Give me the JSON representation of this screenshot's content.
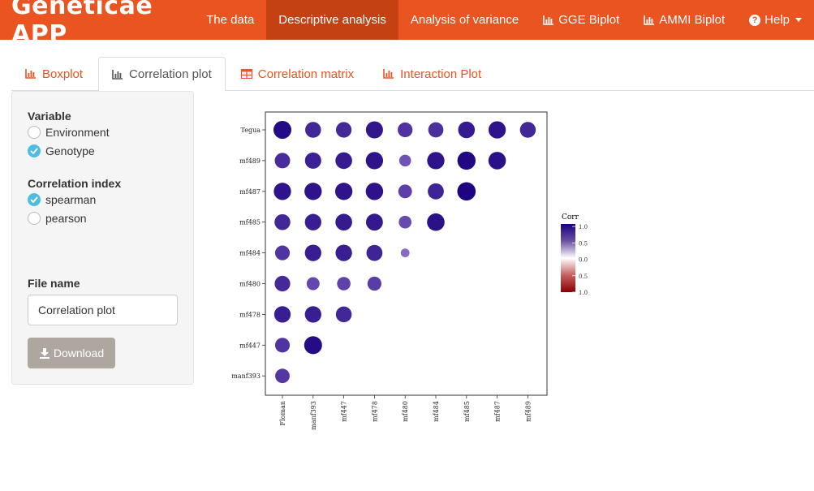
{
  "navbar": {
    "brand": "Geneticae APP",
    "items": [
      {
        "label": "The data",
        "icon": ""
      },
      {
        "label": "Descriptive analysis",
        "icon": "",
        "active": true
      },
      {
        "label": "Analysis of variance",
        "icon": ""
      },
      {
        "label": "GGE Biplot",
        "icon": "bar-chart-icon"
      },
      {
        "label": "AMMI Biplot",
        "icon": "bar-chart-icon"
      },
      {
        "label": "Help",
        "icon": "question-circle-icon",
        "dropdown": true
      }
    ]
  },
  "tabs": [
    {
      "label": "Boxplot",
      "icon": "bar-chart-icon"
    },
    {
      "label": "Correlation plot",
      "icon": "bar-chart-icon",
      "active": true
    },
    {
      "label": "Correlation matrix",
      "icon": "table-icon"
    },
    {
      "label": "Interaction Plot",
      "icon": "bar-chart-icon"
    }
  ],
  "sidebar": {
    "variable_label": "Variable",
    "variable_options": [
      "Environment",
      "Genotype"
    ],
    "variable_selected": "Genotype",
    "index_label": "Correlation index",
    "index_options": [
      "spearman",
      "pearson"
    ],
    "index_selected": "spearman",
    "file_name_label": "File name",
    "file_name_value": "Correlation plot",
    "download_label": "Download"
  },
  "colors": {
    "navbar": "#e95420",
    "navbar_active": "#c34113",
    "tab_link": "#e95420",
    "radio_checked": "#4fbde0",
    "download_button": "#aea79f"
  },
  "chart_data": {
    "type": "heatmap",
    "title": "",
    "row_labels": [
      "Tegua",
      "mf489",
      "mf487",
      "mf485",
      "mf484",
      "mf480",
      "mf478",
      "mf447",
      "manf393"
    ],
    "col_labels": [
      "Floman",
      "manf393",
      "mf447",
      "mf478",
      "mf480",
      "mf484",
      "mf485",
      "mf487",
      "mf489"
    ],
    "values": [
      [
        0.92,
        0.72,
        0.7,
        0.84,
        0.63,
        0.66,
        0.8,
        0.86,
        0.72
      ],
      [
        0.68,
        0.76,
        0.8,
        0.86,
        0.4,
        0.86,
        0.95,
        0.88,
        null
      ],
      [
        0.86,
        0.86,
        0.86,
        0.87,
        0.54,
        0.74,
        0.97,
        null,
        null
      ],
      [
        0.72,
        0.78,
        0.8,
        0.82,
        0.46,
        0.88,
        null,
        null,
        null
      ],
      [
        0.62,
        0.78,
        0.78,
        0.74,
        0.22,
        null,
        null,
        null,
        null
      ],
      [
        0.7,
        0.48,
        0.52,
        0.56,
        null,
        null,
        null,
        null,
        null
      ],
      [
        0.78,
        0.78,
        0.72,
        null,
        null,
        null,
        null,
        null,
        null
      ],
      [
        0.62,
        0.92,
        null,
        null,
        null,
        null,
        null,
        null,
        null
      ],
      [
        0.6,
        null,
        null,
        null,
        null,
        null,
        null,
        null,
        null
      ]
    ],
    "legend": {
      "title": "Corr",
      "ticks": [
        "1.0",
        "0.5",
        "0.0",
        "0.5",
        "1.0"
      ],
      "range": [
        -1,
        1
      ],
      "colors": [
        "#8b0000",
        "#b2182b",
        "#ffffff",
        "#6a51a3",
        "#1a007d"
      ]
    },
    "grid": false,
    "legend_position": "right"
  }
}
